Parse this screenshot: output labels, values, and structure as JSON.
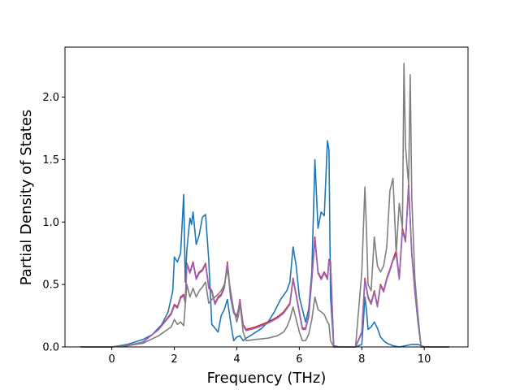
{
  "chart_data": {
    "type": "line",
    "xlabel": "Frequency (THz)",
    "ylabel": "Partial Density of States",
    "xlim": [
      -1.5,
      11.4
    ],
    "ylim": [
      0.0,
      2.4
    ],
    "xticks": [
      "0",
      "2",
      "4",
      "6",
      "8",
      "10"
    ],
    "yticks": [
      "0.0",
      "0.5",
      "1.0",
      "1.5",
      "2.0"
    ],
    "grid": false,
    "legend": false,
    "series": [
      {
        "color": "#1f77b4",
        "x": [
          -1.0,
          0.0,
          0.5,
          1.0,
          1.3,
          1.6,
          1.8,
          1.95,
          2.0,
          2.1,
          2.2,
          2.3,
          2.35,
          2.4,
          2.5,
          2.55,
          2.6,
          2.7,
          2.8,
          2.9,
          3.0,
          3.1,
          3.2,
          3.3,
          3.4,
          3.5,
          3.6,
          3.7,
          3.8,
          3.9,
          4.0,
          4.1,
          4.2,
          4.3,
          4.5,
          4.8,
          5.0,
          5.2,
          5.4,
          5.6,
          5.7,
          5.8,
          5.9,
          6.0,
          6.1,
          6.2,
          6.3,
          6.4,
          6.5,
          6.6,
          6.7,
          6.8,
          6.9,
          6.95,
          7.0,
          7.1,
          7.3,
          7.6,
          7.8,
          8.0,
          8.05,
          8.1,
          8.15,
          8.2,
          8.3,
          8.4,
          8.5,
          8.6,
          8.7,
          8.8,
          9.0,
          9.2,
          9.4,
          9.6,
          9.8,
          10.0,
          10.5,
          10.8
        ],
        "y": [
          0.0,
          0.0,
          0.02,
          0.06,
          0.1,
          0.18,
          0.28,
          0.45,
          0.72,
          0.68,
          0.75,
          1.22,
          0.52,
          0.78,
          1.03,
          0.98,
          1.08,
          0.82,
          0.9,
          1.04,
          1.06,
          0.7,
          0.18,
          0.15,
          0.12,
          0.25,
          0.3,
          0.38,
          0.2,
          0.05,
          0.08,
          0.09,
          0.05,
          0.07,
          0.1,
          0.15,
          0.2,
          0.28,
          0.38,
          0.45,
          0.52,
          0.8,
          0.65,
          0.4,
          0.3,
          0.2,
          0.3,
          0.6,
          1.5,
          0.95,
          1.08,
          1.05,
          1.65,
          1.58,
          0.4,
          0.01,
          0.0,
          0.0,
          0.0,
          0.02,
          0.2,
          0.4,
          0.3,
          0.14,
          0.16,
          0.2,
          0.15,
          0.08,
          0.05,
          0.03,
          0.01,
          0.0,
          0.01,
          0.02,
          0.02,
          0.0,
          0.0,
          0.0
        ]
      },
      {
        "color": "#d62728",
        "x": [
          -1.0,
          0.0,
          0.5,
          1.0,
          1.5,
          1.9,
          2.0,
          2.1,
          2.2,
          2.3,
          2.35,
          2.4,
          2.5,
          2.6,
          2.7,
          2.8,
          2.9,
          3.0,
          3.1,
          3.2,
          3.3,
          3.4,
          3.5,
          3.6,
          3.7,
          3.8,
          3.9,
          4.0,
          4.05,
          4.1,
          4.2,
          4.3,
          4.6,
          5.0,
          5.3,
          5.5,
          5.7,
          5.8,
          5.9,
          6.0,
          6.1,
          6.2,
          6.3,
          6.4,
          6.5,
          6.6,
          6.7,
          6.8,
          6.9,
          6.95,
          7.0,
          7.1,
          7.3,
          7.6,
          7.8,
          8.0,
          8.1,
          8.2,
          8.3,
          8.4,
          8.5,
          8.6,
          8.7,
          8.8,
          8.9,
          9.0,
          9.1,
          9.2,
          9.3,
          9.4,
          9.5,
          9.6,
          9.7,
          9.8,
          9.9,
          10.5,
          10.8
        ],
        "y": [
          0.0,
          0.0,
          0.01,
          0.04,
          0.14,
          0.27,
          0.34,
          0.32,
          0.4,
          0.42,
          0.36,
          0.67,
          0.6,
          0.68,
          0.55,
          0.6,
          0.62,
          0.67,
          0.48,
          0.45,
          0.35,
          0.4,
          0.42,
          0.48,
          0.68,
          0.4,
          0.28,
          0.25,
          0.3,
          0.38,
          0.18,
          0.14,
          0.16,
          0.2,
          0.24,
          0.28,
          0.35,
          0.55,
          0.42,
          0.28,
          0.15,
          0.15,
          0.25,
          0.55,
          0.88,
          0.6,
          0.55,
          0.6,
          0.55,
          0.7,
          0.68,
          0.0,
          0.0,
          0.0,
          0.0,
          0.12,
          0.55,
          0.4,
          0.35,
          0.45,
          0.33,
          0.5,
          0.45,
          0.55,
          0.62,
          0.7,
          0.77,
          0.55,
          0.95,
          0.85,
          1.3,
          0.75,
          0.45,
          0.2,
          0.0,
          0.0,
          0.0
        ]
      },
      {
        "color": "#9467bd",
        "x": [
          -1.0,
          0.0,
          0.5,
          1.0,
          1.5,
          1.9,
          2.0,
          2.1,
          2.2,
          2.3,
          2.35,
          2.4,
          2.5,
          2.6,
          2.7,
          2.8,
          2.9,
          3.0,
          3.1,
          3.2,
          3.3,
          3.4,
          3.5,
          3.6,
          3.7,
          3.8,
          3.9,
          4.0,
          4.05,
          4.1,
          4.2,
          4.3,
          4.6,
          5.0,
          5.3,
          5.5,
          5.7,
          5.8,
          5.9,
          6.0,
          6.1,
          6.2,
          6.3,
          6.4,
          6.5,
          6.6,
          6.7,
          6.8,
          6.9,
          6.95,
          7.0,
          7.1,
          7.3,
          7.6,
          7.8,
          8.0,
          8.1,
          8.2,
          8.3,
          8.4,
          8.5,
          8.6,
          8.7,
          8.8,
          8.9,
          9.0,
          9.1,
          9.2,
          9.3,
          9.4,
          9.5,
          9.6,
          9.7,
          9.8,
          9.9,
          10.5,
          10.8
        ],
        "y": [
          0.0,
          0.0,
          0.01,
          0.04,
          0.14,
          0.26,
          0.33,
          0.31,
          0.39,
          0.41,
          0.35,
          0.66,
          0.59,
          0.67,
          0.54,
          0.59,
          0.61,
          0.66,
          0.47,
          0.44,
          0.34,
          0.39,
          0.41,
          0.47,
          0.67,
          0.39,
          0.27,
          0.24,
          0.29,
          0.37,
          0.17,
          0.13,
          0.15,
          0.19,
          0.23,
          0.27,
          0.34,
          0.54,
          0.41,
          0.27,
          0.14,
          0.14,
          0.24,
          0.54,
          0.86,
          0.59,
          0.54,
          0.59,
          0.54,
          0.69,
          0.67,
          0.0,
          0.0,
          0.0,
          0.0,
          0.11,
          0.54,
          0.39,
          0.34,
          0.44,
          0.32,
          0.49,
          0.44,
          0.54,
          0.61,
          0.69,
          0.74,
          0.54,
          0.93,
          0.84,
          1.28,
          0.74,
          0.44,
          0.19,
          0.0,
          0.0,
          0.0
        ]
      },
      {
        "color": "#7f7f7f",
        "x": [
          -1.0,
          0.0,
          0.5,
          1.0,
          1.5,
          1.9,
          2.0,
          2.1,
          2.2,
          2.3,
          2.4,
          2.5,
          2.6,
          2.7,
          2.8,
          2.9,
          3.0,
          3.1,
          3.2,
          3.3,
          3.4,
          3.5,
          3.6,
          3.7,
          3.8,
          3.9,
          4.0,
          4.05,
          4.1,
          4.2,
          4.3,
          4.6,
          5.0,
          5.3,
          5.5,
          5.6,
          5.7,
          5.8,
          5.9,
          6.0,
          6.1,
          6.2,
          6.3,
          6.4,
          6.5,
          6.6,
          6.7,
          6.8,
          6.9,
          6.95,
          7.0,
          7.1,
          7.3,
          7.6,
          7.8,
          8.0,
          8.1,
          8.15,
          8.2,
          8.3,
          8.4,
          8.5,
          8.6,
          8.7,
          8.8,
          8.9,
          9.0,
          9.1,
          9.2,
          9.3,
          9.35,
          9.4,
          9.5,
          9.55,
          9.6,
          9.7,
          9.8,
          9.9,
          10.5,
          10.8
        ],
        "y": [
          0.0,
          0.0,
          0.01,
          0.03,
          0.09,
          0.16,
          0.22,
          0.18,
          0.2,
          0.17,
          0.5,
          0.4,
          0.47,
          0.4,
          0.45,
          0.48,
          0.52,
          0.35,
          0.38,
          0.4,
          0.42,
          0.45,
          0.5,
          0.62,
          0.45,
          0.3,
          0.2,
          0.25,
          0.35,
          0.12,
          0.05,
          0.06,
          0.07,
          0.09,
          0.12,
          0.16,
          0.22,
          0.32,
          0.22,
          0.12,
          0.05,
          0.05,
          0.1,
          0.22,
          0.4,
          0.3,
          0.28,
          0.26,
          0.2,
          0.18,
          0.05,
          0.0,
          0.0,
          0.0,
          0.0,
          0.6,
          1.28,
          0.95,
          0.5,
          0.45,
          0.88,
          0.65,
          0.6,
          0.65,
          0.8,
          1.25,
          1.35,
          0.75,
          1.15,
          0.95,
          2.27,
          1.6,
          1.3,
          2.18,
          1.2,
          0.55,
          0.25,
          0.0,
          0.0,
          0.0
        ]
      }
    ]
  }
}
